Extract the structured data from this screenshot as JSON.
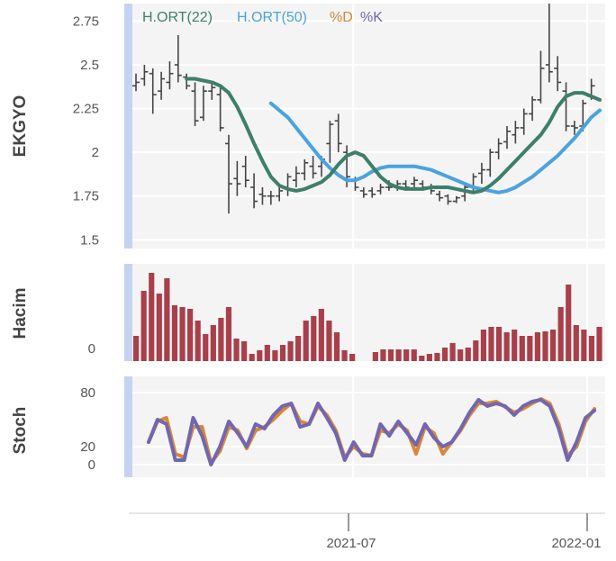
{
  "chart_data": [
    {
      "type": "line",
      "panel": "price",
      "ylabel": "EKGYO",
      "yticks": [
        "1.5",
        "1.75",
        "2",
        "2.25",
        "2.5",
        "2.75"
      ],
      "ytick_values": [
        1.5,
        1.75,
        2.0,
        2.25,
        2.5,
        2.75
      ],
      "ylim": [
        1.45,
        2.85
      ],
      "legend": [
        {
          "label": "H.ORT(22)",
          "color": "#3d7f6b"
        },
        {
          "label": "H.ORT(50)",
          "color": "#4aa3df"
        },
        {
          "label": "%D",
          "color": "#d9873a"
        },
        {
          "label": "%K",
          "color": "#7166b0"
        }
      ],
      "ohlc": [
        [
          2.38,
          2.45,
          2.35,
          2.4
        ],
        [
          2.42,
          2.5,
          2.38,
          2.46
        ],
        [
          2.45,
          2.48,
          2.22,
          2.33
        ],
        [
          2.35,
          2.46,
          2.3,
          2.42
        ],
        [
          2.4,
          2.52,
          2.36,
          2.45
        ],
        [
          2.5,
          2.67,
          2.4,
          2.44
        ],
        [
          2.43,
          2.45,
          2.36,
          2.38
        ],
        [
          2.35,
          2.4,
          2.15,
          2.18
        ],
        [
          2.2,
          2.38,
          2.18,
          2.35
        ],
        [
          2.35,
          2.4,
          2.3,
          2.37
        ],
        [
          2.33,
          2.38,
          2.12,
          2.14
        ],
        [
          2.05,
          2.1,
          1.65,
          1.82
        ],
        [
          1.85,
          1.95,
          1.75,
          1.82
        ],
        [
          1.92,
          1.98,
          1.8,
          1.84
        ],
        [
          1.8,
          1.88,
          1.68,
          1.72
        ],
        [
          1.76,
          1.8,
          1.7,
          1.75
        ],
        [
          1.75,
          1.78,
          1.7,
          1.75
        ],
        [
          1.75,
          1.8,
          1.72,
          1.78
        ],
        [
          1.8,
          1.88,
          1.75,
          1.86
        ],
        [
          1.84,
          1.92,
          1.8,
          1.88
        ],
        [
          1.88,
          1.96,
          1.84,
          1.94
        ],
        [
          1.92,
          1.98,
          1.85,
          1.88
        ],
        [
          1.92,
          1.98,
          1.86,
          1.96
        ],
        [
          2.05,
          2.18,
          1.94,
          2.16
        ],
        [
          2.18,
          2.22,
          2.0,
          2.05
        ],
        [
          2.0,
          2.04,
          1.8,
          1.86
        ],
        [
          1.84,
          1.86,
          1.78,
          1.8
        ],
        [
          1.78,
          1.8,
          1.74,
          1.76
        ],
        [
          1.78,
          1.8,
          1.74,
          1.76
        ],
        [
          1.78,
          1.82,
          1.76,
          1.8
        ],
        [
          1.8,
          1.84,
          1.78,
          1.8
        ],
        [
          1.8,
          1.84,
          1.78,
          1.82
        ],
        [
          1.82,
          1.84,
          1.78,
          1.8
        ],
        [
          1.82,
          1.86,
          1.78,
          1.84
        ],
        [
          1.82,
          1.84,
          1.78,
          1.8
        ],
        [
          1.8,
          1.82,
          1.76,
          1.78
        ],
        [
          1.76,
          1.78,
          1.72,
          1.74
        ],
        [
          1.75,
          1.76,
          1.7,
          1.72
        ],
        [
          1.72,
          1.75,
          1.71,
          1.74
        ],
        [
          1.75,
          1.82,
          1.72,
          1.8
        ],
        [
          1.8,
          1.88,
          1.78,
          1.86
        ],
        [
          1.88,
          1.94,
          1.82,
          1.9
        ],
        [
          1.9,
          2.02,
          1.86,
          2.0
        ],
        [
          2.0,
          2.08,
          1.96,
          2.05
        ],
        [
          2.06,
          2.15,
          2.02,
          2.12
        ],
        [
          2.1,
          2.18,
          2.05,
          2.14
        ],
        [
          2.14,
          2.25,
          2.1,
          2.22
        ],
        [
          2.22,
          2.32,
          2.18,
          2.3
        ],
        [
          2.3,
          2.58,
          2.28,
          2.48
        ],
        [
          2.5,
          2.85,
          2.4,
          2.46
        ],
        [
          2.48,
          2.55,
          2.35,
          2.4
        ],
        [
          2.35,
          2.4,
          2.12,
          2.15
        ],
        [
          2.15,
          2.18,
          2.1,
          2.14
        ],
        [
          2.15,
          2.3,
          2.12,
          2.28
        ],
        [
          2.32,
          2.42,
          2.3,
          2.38
        ]
      ],
      "ma22": [
        2.42,
        2.42,
        2.41,
        2.4,
        2.38,
        2.34,
        2.26,
        2.16,
        2.05,
        1.95,
        1.86,
        1.81,
        1.79,
        1.78,
        1.79,
        1.81,
        1.83,
        1.87,
        1.93,
        1.98,
        2.0,
        1.98,
        1.92,
        1.86,
        1.82,
        1.8,
        1.79,
        1.79,
        1.79,
        1.8,
        1.8,
        1.8,
        1.79,
        1.78,
        1.77,
        1.78,
        1.81,
        1.85,
        1.9,
        1.95,
        2.0,
        2.05,
        2.1,
        2.17,
        2.26,
        2.32,
        2.34,
        2.34,
        2.32,
        2.3
      ],
      "ma22_start": 6,
      "ma50": [
        2.28,
        2.24,
        2.2,
        2.14,
        2.08,
        2.02,
        1.96,
        1.91,
        1.87,
        1.84,
        1.84,
        1.86,
        1.89,
        1.91,
        1.92,
        1.92,
        1.92,
        1.92,
        1.91,
        1.9,
        1.88,
        1.86,
        1.84,
        1.82,
        1.8,
        1.79,
        1.78,
        1.77,
        1.78,
        1.8,
        1.83,
        1.86,
        1.9,
        1.94,
        1.98,
        2.03,
        2.08,
        2.14,
        2.2,
        2.24
      ],
      "ma50_start": 16
    },
    {
      "type": "bar",
      "panel": "volume",
      "ylabel": "Hacim",
      "yticks": [
        "0"
      ],
      "ytick_values": [
        0
      ],
      "ylim": [
        0,
        100
      ],
      "color": "#a83f4a",
      "values": [
        28,
        78,
        98,
        75,
        92,
        62,
        60,
        58,
        45,
        30,
        40,
        48,
        60,
        25,
        22,
        8,
        12,
        18,
        12,
        18,
        22,
        28,
        45,
        50,
        58,
        45,
        32,
        12,
        8,
        0,
        0,
        10,
        13,
        13,
        13,
        13,
        13,
        6,
        8,
        9,
        15,
        20,
        13,
        15,
        23,
        35,
        38,
        38,
        32,
        35,
        28,
        28,
        32,
        33,
        35,
        60,
        85,
        40,
        35,
        28,
        38
      ]
    },
    {
      "type": "line",
      "panel": "stochastic",
      "ylabel": "Stoch",
      "yticks": [
        "0",
        "20",
        "80"
      ],
      "ytick_values": [
        0,
        20,
        80
      ],
      "ylim": [
        0,
        80
      ],
      "series": [
        {
          "name": "%K",
          "color": "#7166b0",
          "values": [
            25,
            50,
            45,
            5,
            5,
            52,
            32,
            0,
            20,
            48,
            35,
            20,
            45,
            40,
            55,
            65,
            68,
            42,
            45,
            68,
            52,
            35,
            5,
            25,
            10,
            10,
            45,
            32,
            48,
            35,
            22,
            45,
            30,
            20,
            25,
            40,
            58,
            72,
            65,
            68,
            65,
            55,
            65,
            70,
            72,
            65,
            40,
            5,
            25,
            52,
            60
          ]
        },
        {
          "name": "%D",
          "color": "#d9873a",
          "values": [
            25,
            48,
            52,
            12,
            8,
            42,
            42,
            2,
            15,
            42,
            38,
            18,
            38,
            42,
            50,
            60,
            68,
            48,
            45,
            65,
            55,
            38,
            8,
            20,
            12,
            10,
            38,
            35,
            45,
            38,
            12,
            42,
            35,
            12,
            25,
            38,
            55,
            68,
            68,
            70,
            64,
            58,
            62,
            68,
            73,
            68,
            45,
            10,
            20,
            48,
            62
          ]
        }
      ]
    }
  ],
  "x_axis": {
    "ticks": [
      "2021-07",
      "2022-01"
    ]
  },
  "colors": {
    "plot_bg": "#f4f4f4",
    "gridline": "#ffffff",
    "left_band": "#c5d3f0",
    "candle": "#444444"
  }
}
